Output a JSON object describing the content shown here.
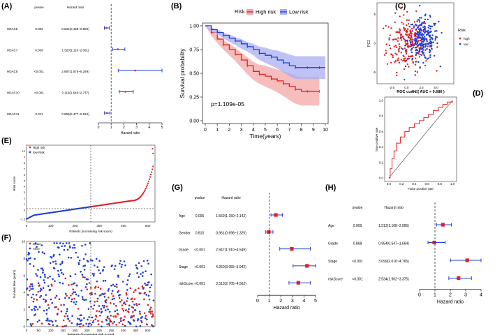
{
  "panels": {
    "A": "(A)",
    "B": "(B)",
    "C": "(C)",
    "D": "(D)",
    "E": "(E)",
    "F": "(F)",
    "G": "(G)",
    "H": "(H)"
  },
  "colors": {
    "high": "#e02020",
    "low": "#1f3fd6",
    "high_band": "#f4a6a6",
    "low_band": "#a9aef0",
    "hr_point": "#d81b60",
    "forest_line": "#1f3fd6",
    "cox_point": "#e02020"
  },
  "chart_data": [
    {
      "panel": "A",
      "type": "forest",
      "col_headers": [
        "pvalue",
        "Hazard ratio"
      ],
      "xlabel": "Hazard ratio",
      "xlim": [
        0,
        5
      ],
      "xticks": [
        0,
        1,
        2,
        3,
        4,
        5
      ],
      "reference": 1,
      "rows": [
        {
          "label": "HDAC5",
          "pvalue": "0.002",
          "hr_text": "0.631(0.468~0.850)",
          "hr": 0.631,
          "lo": 0.468,
          "hi": 0.85
        },
        {
          "label": "HDAC7",
          "pvalue": "0.009",
          "hr_text": "1.520(1.110~2.081)",
          "hr": 1.52,
          "lo": 1.11,
          "hi": 2.081
        },
        {
          "label": "HDAC8",
          "pvalue": "<0.001",
          "hr_text": "2.887(1.576~5.289)",
          "hr": 2.887,
          "lo": 1.576,
          "hi": 5.289
        },
        {
          "label": "HDAC10",
          "pvalue": "<0.001",
          "hr_text": "2.119(1.640~2.737)",
          "hr": 2.119,
          "lo": 1.64,
          "hi": 2.737
        },
        {
          "label": "HDAC11",
          "pvalue": "0.011",
          "hr_text": "0.659(0.477~0.910)",
          "hr": 0.659,
          "lo": 0.477,
          "hi": 0.91
        }
      ]
    },
    {
      "panel": "B",
      "type": "line",
      "legend_title": "Risk",
      "xlabel": "Time(years)",
      "ylabel": "Survival probability",
      "xlim": [
        0,
        10
      ],
      "ylim": [
        0,
        1
      ],
      "xticks": [
        0,
        1,
        2,
        3,
        4,
        5,
        6,
        7,
        8,
        9,
        10
      ],
      "yticks": [
        "0.00",
        "0.25",
        "0.50",
        "0.75",
        "1.00"
      ],
      "annotation": "p=1.109e-05",
      "series": [
        {
          "name": "High risk",
          "x": [
            0,
            0.5,
            1,
            1.5,
            2,
            2.5,
            3,
            3.5,
            4,
            4.5,
            5,
            5.5,
            6,
            6.5,
            7,
            7.5,
            8,
            8.5,
            9,
            9.5
          ],
          "y": [
            1.0,
            0.93,
            0.86,
            0.8,
            0.75,
            0.7,
            0.64,
            0.58,
            0.52,
            0.49,
            0.47,
            0.44,
            0.42,
            0.39,
            0.36,
            0.33,
            0.31,
            0.31,
            0.31,
            0.31
          ],
          "lower": [
            1.0,
            0.9,
            0.82,
            0.75,
            0.69,
            0.63,
            0.56,
            0.49,
            0.43,
            0.39,
            0.36,
            0.33,
            0.3,
            0.26,
            0.22,
            0.18,
            0.16,
            0.16,
            0.16,
            0.16
          ],
          "upper": [
            1.0,
            0.96,
            0.9,
            0.85,
            0.81,
            0.77,
            0.72,
            0.67,
            0.62,
            0.59,
            0.58,
            0.56,
            0.54,
            0.52,
            0.5,
            0.48,
            0.46,
            0.46,
            0.46,
            0.46
          ]
        },
        {
          "name": "Low risk",
          "x": [
            0,
            0.5,
            1,
            1.5,
            2,
            2.5,
            3,
            3.5,
            4,
            4.5,
            5,
            5.5,
            6,
            6.5,
            7,
            7.5,
            8,
            8.5,
            9,
            9.5,
            10
          ],
          "y": [
            1.0,
            0.96,
            0.93,
            0.9,
            0.87,
            0.84,
            0.81,
            0.78,
            0.75,
            0.71,
            0.69,
            0.67,
            0.64,
            0.61,
            0.58,
            0.56,
            0.56,
            0.56,
            0.56,
            0.56,
            0.56
          ],
          "lower": [
            1.0,
            0.94,
            0.91,
            0.87,
            0.83,
            0.8,
            0.76,
            0.73,
            0.69,
            0.64,
            0.61,
            0.58,
            0.55,
            0.51,
            0.47,
            0.44,
            0.44,
            0.44,
            0.44,
            0.44,
            0.44
          ],
          "upper": [
            1.0,
            0.98,
            0.96,
            0.93,
            0.91,
            0.88,
            0.86,
            0.83,
            0.81,
            0.78,
            0.77,
            0.75,
            0.74,
            0.72,
            0.7,
            0.68,
            0.68,
            0.68,
            0.68,
            0.68,
            0.68
          ]
        }
      ]
    },
    {
      "panel": "C",
      "type": "scatter",
      "xlabel": "PC1",
      "ylabel": "PC2",
      "legend_title": "Risk",
      "legend_placement": "right",
      "series": [
        "high",
        "low"
      ],
      "xticks": [
        "-2.5",
        "0.0",
        "2.5",
        "5.0"
      ],
      "yticks": [
        "-5",
        "0",
        "5"
      ],
      "xlim": [
        -5,
        8
      ],
      "ylim": [
        -7,
        7
      ]
    },
    {
      "panel": "D",
      "type": "line",
      "title": "ROC curve ( AUC = 0.686 )",
      "xlabel": "False positive rate",
      "ylabel": "True positive rate",
      "xlim": [
        0,
        1
      ],
      "ylim": [
        0,
        1
      ],
      "xticks": [
        "0.0",
        "0.2",
        "0.4",
        "0.6",
        "0.8",
        "1.0"
      ],
      "yticks": [
        "0.0",
        "0.2",
        "0.4",
        "0.6",
        "0.8",
        "1.0"
      ],
      "x": [
        0,
        0.02,
        0.05,
        0.08,
        0.12,
        0.18,
        0.25,
        0.32,
        0.4,
        0.48,
        0.55,
        0.62,
        0.7,
        0.78,
        0.85,
        0.92,
        1.0
      ],
      "y": [
        0,
        0.12,
        0.25,
        0.35,
        0.45,
        0.53,
        0.6,
        0.65,
        0.7,
        0.74,
        0.78,
        0.82,
        0.87,
        0.91,
        0.95,
        0.98,
        1.0
      ]
    },
    {
      "panel": "E",
      "type": "scatter",
      "xlabel": "Patients (increasing risk socre)",
      "ylabel": "Risk score",
      "legend": [
        "High risk",
        "low Risk"
      ],
      "legend_placement": "top-left",
      "xlim": [
        0,
        530
      ],
      "ylim": [
        -2,
        11
      ],
      "xticks": [
        0,
        100,
        200,
        300,
        400,
        500
      ],
      "yticks": [
        "-1.5",
        "0",
        "1",
        "2",
        "3",
        "4",
        "5",
        "6",
        "7",
        "8",
        "9",
        "10"
      ],
      "cutoff_index": 265,
      "cutoff_score": 1.4
    },
    {
      "panel": "F",
      "type": "scatter",
      "xlabel": "Patients (increasing risk score)",
      "ylabel": "Survival time (years)",
      "legend": [
        "Dead",
        "Alive"
      ],
      "legend_placement": "top-left",
      "xlim": [
        0,
        530
      ],
      "ylim": [
        0,
        10
      ],
      "xticks": [
        0,
        50,
        100,
        150,
        200,
        250,
        300,
        350,
        400,
        450,
        500
      ],
      "yticks": [
        0,
        2,
        4,
        6,
        8,
        10
      ],
      "cutoff_index": 265
    },
    {
      "panel": "G",
      "type": "forest",
      "col_headers": [
        "pvalue",
        "Hazard ratio"
      ],
      "xlabel": "Hazard ratio",
      "xlim": [
        0,
        5
      ],
      "xticks": [
        0,
        1,
        2,
        3,
        4,
        5
      ],
      "reference": 1,
      "rows": [
        {
          "label": "Age",
          "pvalue": "0.005",
          "hr_text": "1.569(1.150~2.142)",
          "hr": 1.569,
          "lo": 1.15,
          "hi": 2.142
        },
        {
          "label": "Gender",
          "pvalue": "0.810",
          "hr_text": "0.961(0.698~1.325)",
          "hr": 0.961,
          "lo": 0.698,
          "hi": 1.325
        },
        {
          "label": "Grade",
          "pvalue": "<0.001",
          "hr_text": "2.947(1.910~4.549)",
          "hr": 2.947,
          "lo": 1.91,
          "hi": 4.549
        },
        {
          "label": "Stage",
          "pvalue": "<0.001",
          "hr_text": "4.260(3.055~5.942)",
          "hr": 4.26,
          "lo": 3.055,
          "hi": 5.942
        },
        {
          "label": "riskScore",
          "pvalue": "<0.001",
          "hr_text": "3.513(2.705~4.562)",
          "hr": 3.513,
          "lo": 2.705,
          "hi": 4.562
        }
      ]
    },
    {
      "panel": "H",
      "type": "forest",
      "col_headers": [
        "pvalue",
        "Hazard ratio"
      ],
      "xlabel": "Hazard ratio",
      "xlim": [
        0,
        4
      ],
      "xticks": [
        0,
        1,
        2,
        3,
        4
      ],
      "reference": 1,
      "rows": [
        {
          "label": "Age",
          "pvalue": "0.009",
          "hr_text": "1.513(1.108~2.065)",
          "hr": 1.513,
          "lo": 1.108,
          "hi": 2.065
        },
        {
          "label": "Grade",
          "pvalue": "0.868",
          "hr_text": "0.954(0.547~1.664)",
          "hr": 0.954,
          "lo": 0.547,
          "hi": 1.664
        },
        {
          "label": "Stage",
          "pvalue": "<0.001",
          "hr_text": "3.099(2.016~4.765)",
          "hr": 3.099,
          "lo": 2.016,
          "hi": 4.765
        },
        {
          "label": "riskScore",
          "pvalue": "<0.001",
          "hr_text": "2.534(1.902~3.375)",
          "hr": 2.534,
          "lo": 1.902,
          "hi": 3.375
        }
      ]
    }
  ]
}
